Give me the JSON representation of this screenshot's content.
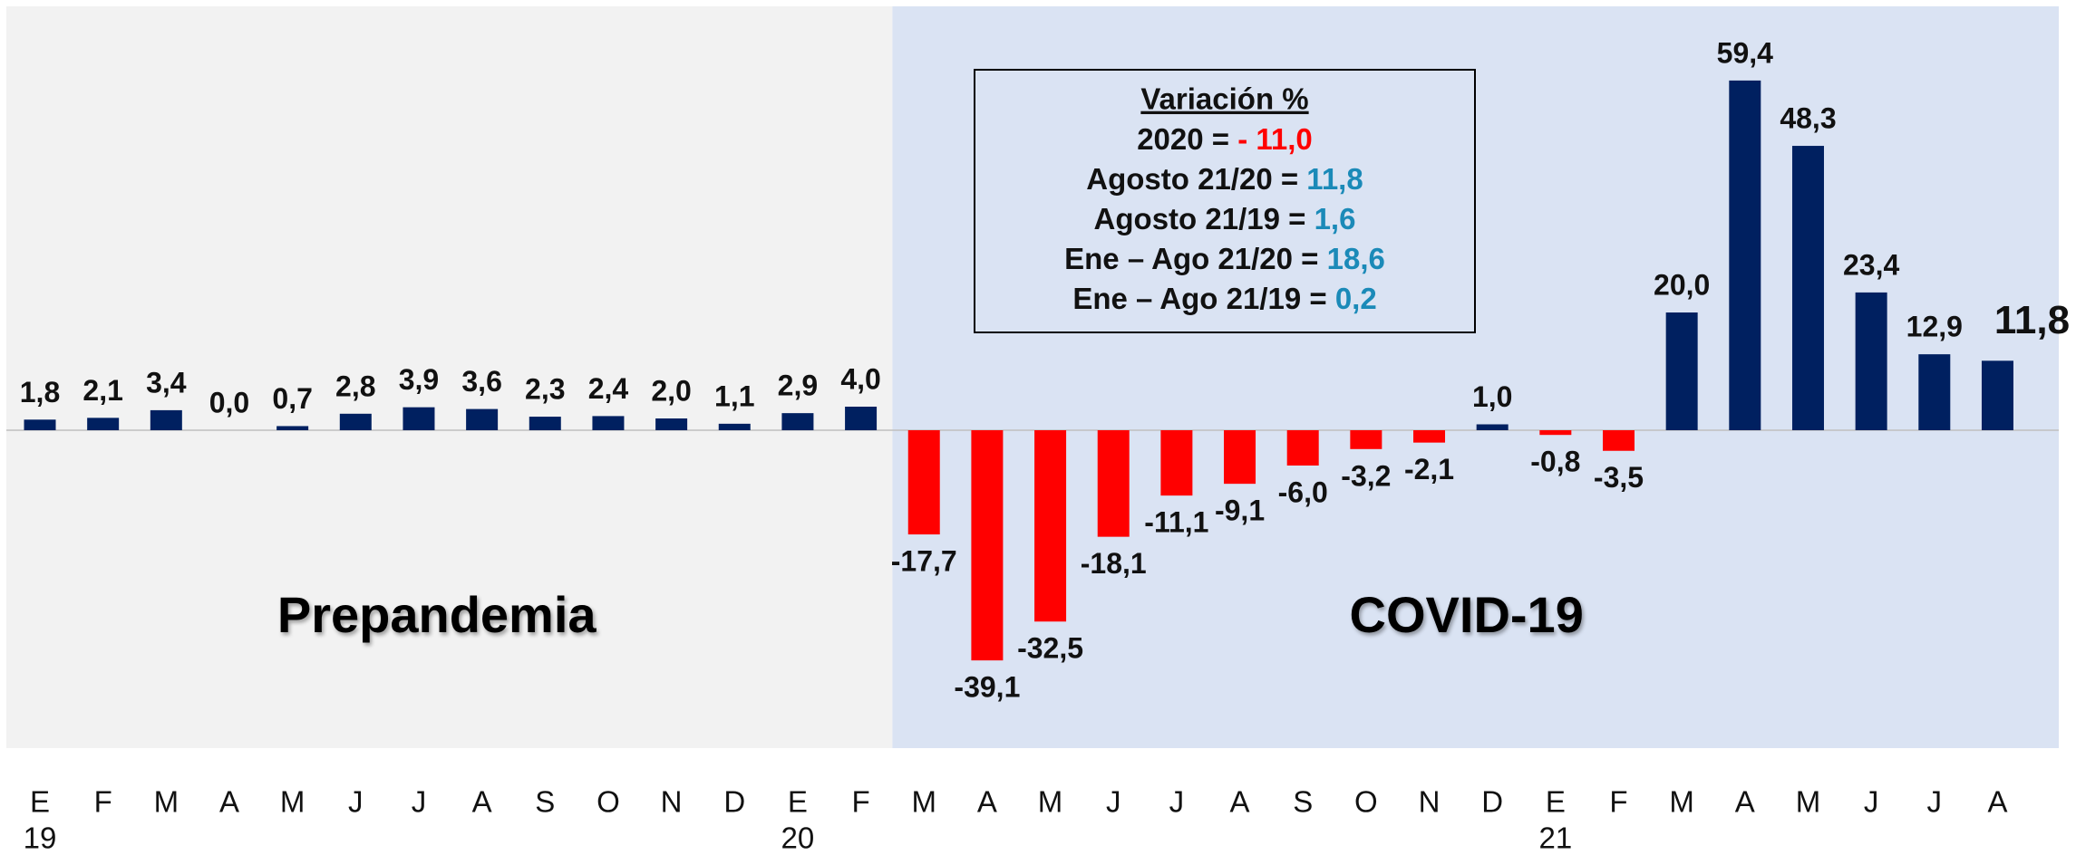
{
  "chart_data": {
    "type": "bar",
    "categories": [
      "E",
      "F",
      "M",
      "A",
      "M",
      "J",
      "J",
      "A",
      "S",
      "O",
      "N",
      "D",
      "E",
      "F",
      "M",
      "A",
      "M",
      "J",
      "J",
      "A",
      "S",
      "O",
      "N",
      "D",
      "E",
      "F",
      "M",
      "A",
      "M",
      "J",
      "J",
      "A"
    ],
    "years": [
      "19",
      null,
      null,
      null,
      null,
      null,
      null,
      null,
      null,
      null,
      null,
      null,
      "20",
      null,
      null,
      null,
      null,
      null,
      null,
      null,
      null,
      null,
      null,
      null,
      "21",
      null,
      null,
      null,
      null,
      null,
      null,
      null
    ],
    "values": [
      1.8,
      2.1,
      3.4,
      0.0,
      0.7,
      2.8,
      3.9,
      3.6,
      2.3,
      2.4,
      2.0,
      1.1,
      2.9,
      4.0,
      -17.7,
      -39.1,
      -32.5,
      -18.1,
      -11.1,
      -9.1,
      -6.0,
      -3.2,
      -2.1,
      1.0,
      -0.8,
      -3.5,
      20.0,
      59.4,
      48.3,
      23.4,
      12.9,
      11.8
    ],
    "value_labels": [
      "1,8",
      "2,1",
      "3,4",
      "0,0",
      "0,7",
      "2,8",
      "3,9",
      "3,6",
      "2,3",
      "2,4",
      "2,0",
      "1,1",
      "2,9",
      "4,0",
      "-17,7",
      "-39,1",
      "-32,5",
      "-18,1",
      "-11,1",
      "-9,1",
      "-6,0",
      "-3,2",
      "-2,1",
      "1,0",
      "-0,8",
      "-3,5",
      "20,0",
      "59,4",
      "48,3",
      "23,4",
      "12,9",
      "11,8"
    ],
    "colors": {
      "positive": "#002060",
      "negative": "#ff0000"
    },
    "ylim": [
      -54,
      72
    ],
    "regions": [
      {
        "label": "Prepandemia",
        "start": 0,
        "end": 13,
        "color": "#f2f2f2"
      },
      {
        "label": "COVID-19",
        "start": 14,
        "end": 31,
        "color": "#dae3f3"
      }
    ],
    "annotation": {
      "title": "Variación %",
      "lines": [
        {
          "text": "2020 = ",
          "value": "- 11,0",
          "color": "#ff0000"
        },
        {
          "text": "Agosto 21/20 = ",
          "value": "11,8",
          "color": "#1b8ab8"
        },
        {
          "text": "Agosto 21/19 = ",
          "value": "1,6",
          "color": "#1b8ab8"
        },
        {
          "text": "Ene – Ago 21/20 = ",
          "value": "18,6",
          "color": "#1b8ab8"
        },
        {
          "text": "Ene – Ago 21/19 = ",
          "value": "0,2",
          "color": "#1b8ab8"
        }
      ]
    }
  }
}
